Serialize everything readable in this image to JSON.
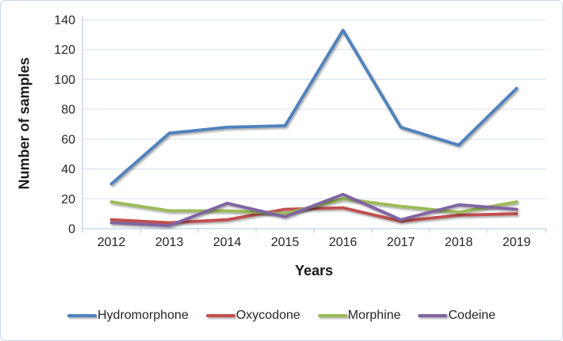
{
  "chart_data": {
    "type": "line",
    "title": "",
    "xlabel": "Years",
    "ylabel": "Number of samples",
    "categories": [
      "2012",
      "2013",
      "2014",
      "2015",
      "2016",
      "2017",
      "2018",
      "2019"
    ],
    "ylim": [
      0,
      140
    ],
    "ytick_step": 20,
    "ytick_labels": [
      "0",
      "20",
      "40",
      "60",
      "80",
      "100",
      "120",
      "140"
    ],
    "grid": true,
    "legend_position": "bottom",
    "series": [
      {
        "name": "Hydromorphone",
        "color": "#4F81BD",
        "values": [
          30,
          64,
          68,
          69,
          133,
          68,
          56,
          94
        ]
      },
      {
        "name": "Oxycodone",
        "color": "#C0504D",
        "values": [
          6,
          4,
          6,
          13,
          14,
          5,
          9,
          10
        ]
      },
      {
        "name": "Morphine",
        "color": "#9BBB59",
        "values": [
          18,
          12,
          12,
          10,
          20,
          15,
          11,
          18
        ]
      },
      {
        "name": "Codeine",
        "color": "#8064A2",
        "values": [
          4,
          2,
          17,
          8,
          23,
          6,
          16,
          13
        ]
      }
    ]
  },
  "style_colors": {
    "gridline": "#dce6f2",
    "axis_line": "#bdd2e8",
    "text": "#262626",
    "border": "#c8d8ec",
    "background": "#ffffff"
  }
}
